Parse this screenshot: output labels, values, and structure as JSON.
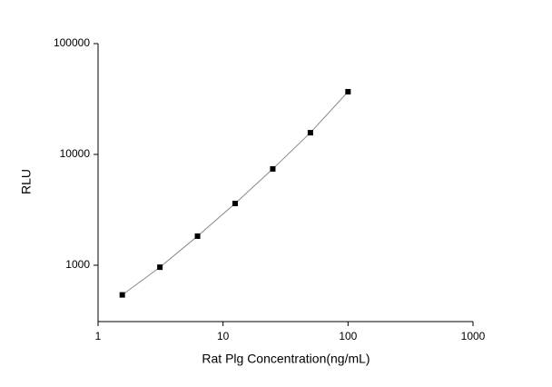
{
  "chart_data": {
    "type": "scatter",
    "x_label": "Rat Plg Concentration(ng/mL)",
    "y_label": "RLU",
    "x": [
      1.5625,
      3.125,
      6.25,
      12.5,
      25,
      50,
      100
    ],
    "series": [
      {
        "color": "#000000",
        "values": [
          540,
          960,
          1830,
          3610,
          7400,
          15700,
          36800
        ]
      }
    ],
    "xlim": [
      1,
      1000
    ],
    "ylim": [
      310,
      100000
    ],
    "xticks": [
      1,
      10,
      100,
      1000
    ],
    "yticks": [
      1000,
      10000,
      100000
    ],
    "log_x": true,
    "log_y": true,
    "line_color": "#888888"
  }
}
